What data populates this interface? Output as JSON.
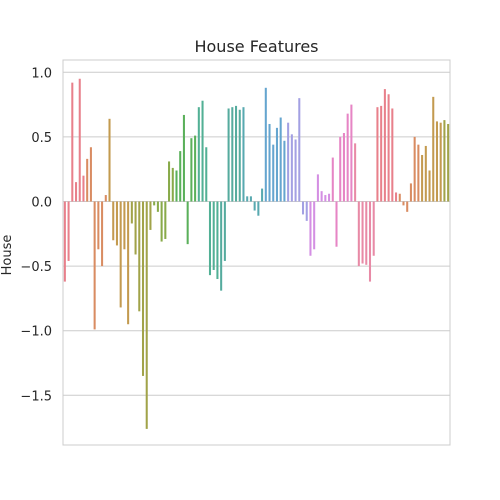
{
  "chart_data": {
    "type": "bar",
    "title": "House Features",
    "xlabel": "",
    "ylabel": "House",
    "ylim": [
      -1.9,
      1.1
    ],
    "yticks": [
      1.0,
      0.5,
      0.0,
      -0.5,
      -1.0,
      -1.5
    ],
    "ytick_labels": [
      "1.0",
      "0.5",
      "0.0",
      "−0.5",
      "−1.0",
      "−1.5"
    ],
    "grid": true,
    "legend": "none",
    "values": [
      -0.62,
      -0.46,
      0.92,
      0.15,
      0.95,
      0.2,
      0.33,
      0.42,
      -0.99,
      -0.37,
      -0.5,
      0.05,
      0.64,
      -0.3,
      -0.34,
      -0.82,
      -0.37,
      -0.95,
      -0.17,
      -0.41,
      -0.85,
      -1.35,
      -1.76,
      -0.22,
      -0.03,
      -0.08,
      -0.31,
      -0.29,
      0.31,
      0.26,
      0.24,
      0.39,
      0.67,
      -0.33,
      0.49,
      0.51,
      0.73,
      0.78,
      0.42,
      -0.57,
      -0.53,
      -0.6,
      -0.69,
      -0.46,
      0.72,
      0.73,
      0.74,
      0.71,
      0.73,
      0.04,
      0.04,
      -0.07,
      -0.11,
      0.1,
      0.88,
      0.6,
      0.44,
      0.57,
      0.65,
      0.47,
      0.61,
      0.52,
      0.48,
      0.8,
      -0.1,
      -0.15,
      -0.42,
      -0.37,
      0.21,
      0.08,
      0.05,
      0.06,
      0.34,
      -0.35,
      0.5,
      0.53,
      0.68,
      0.75,
      0.45,
      -0.5,
      -0.48,
      -0.49,
      -0.62,
      -0.42,
      0.73,
      0.74,
      0.87,
      0.83,
      0.72,
      0.07,
      0.06,
      -0.03,
      -0.08,
      0.14,
      0.5,
      0.44,
      0.36,
      0.43,
      0.24,
      0.81,
      0.62,
      0.61,
      0.63,
      0.6
    ],
    "group_size": 6,
    "colors": [
      "#e8808b",
      "#d98c62",
      "#c39a4f",
      "#a1a349",
      "#88aa49",
      "#5ab05a",
      "#52b095",
      "#55ab9e",
      "#58a9b0",
      "#65a5cf",
      "#a3a0e3",
      "#d48fe3",
      "#e685c5",
      "#e88aa6"
    ]
  }
}
